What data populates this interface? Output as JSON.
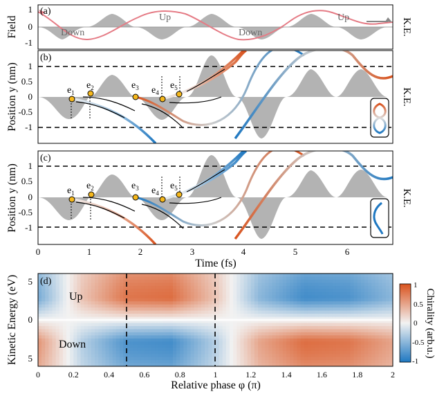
{
  "figure": {
    "panel_a": {
      "tag": "(a)",
      "ylabel": "Field",
      "right_label": "K.E.",
      "yticks": [
        "1",
        "0",
        "-1"
      ],
      "annotations": [
        "Down",
        "Up",
        "Down",
        "Up"
      ]
    },
    "panel_b": {
      "tag": "(b)",
      "ylabel": "Position y (nm)",
      "right_label": "K.E.",
      "yticks": [
        "1",
        "0.5",
        "0",
        "-0.5",
        "-1"
      ],
      "electrons": [
        "e",
        "e",
        "e",
        "e",
        "e"
      ],
      "subscripts": [
        "1",
        "2",
        "3",
        "4",
        "5"
      ]
    },
    "panel_c": {
      "tag": "(c)",
      "ylabel": "Position y (nm)",
      "right_label": "K.E.",
      "yticks": [
        "1",
        "0.5",
        "0",
        "-0.5",
        "-1"
      ],
      "electrons": [
        "e",
        "e",
        "e",
        "e",
        "e"
      ],
      "subscripts": [
        "1",
        "2",
        "3",
        "4",
        "5"
      ],
      "xticks": [
        "0",
        "1",
        "2",
        "3",
        "4",
        "5",
        "6"
      ],
      "xlabel": "Time (fs)"
    },
    "panel_d": {
      "tag": "(d)",
      "ylabel": "Kinetic Energy (eV)",
      "yticks": [
        "5",
        "0",
        "5"
      ],
      "region_labels": [
        "Up",
        "Down"
      ],
      "xticks": [
        "0",
        "0.2",
        "0.4",
        "0.6",
        "0.8",
        "1",
        "1.2",
        "1.4",
        "1.6",
        "1.8",
        "2"
      ],
      "xlabel": "Relative phase φ (π)",
      "colorbar_label": "Chirality (arb.u.)",
      "colorbar_ticks": [
        "1",
        "0.5",
        "0",
        "-0.5",
        "-1"
      ]
    }
  },
  "chart_data": [
    {
      "type": "line",
      "panel": "(a)",
      "ylabel": "Field",
      "ylim": [
        -1,
        1
      ],
      "xlim": [
        0,
        6.8
      ],
      "series": [
        {
          "color": "#e57b85",
          "x": [
            0,
            0.5,
            1.0,
            1.5,
            2.0,
            2.5,
            3.0,
            3.5,
            4.0,
            4.5,
            5.0,
            5.5,
            6.0,
            6.5,
            6.8
          ],
          "values": [
            0.71,
            -0.2,
            -0.92,
            -0.92,
            -0.2,
            0.71,
            0.99,
            0.38,
            -0.71,
            -0.98,
            -0.5,
            0.4,
            0.98,
            0.86,
            0.4
          ]
        },
        {
          "color": "#b3b3b3",
          "x": [
            0,
            0.7,
            1.35,
            2.05,
            2.7,
            3.35,
            4.05,
            4.7,
            5.4,
            6.05,
            6.8
          ],
          "values": [
            0,
            -0.75,
            0,
            0.75,
            0,
            -0.75,
            0,
            0.75,
            0,
            -0.75,
            0
          ]
        }
      ]
    },
    {
      "type": "line",
      "panel": "(b)",
      "ylabel": "Position y (nm)",
      "ylim": [
        -1.4,
        1.4
      ],
      "xlim": [
        0,
        6.8
      ],
      "points": [
        {
          "x": 0.67,
          "y": -0.05
        },
        {
          "x": 1.02,
          "y": 0.08
        },
        {
          "x": 1.9,
          "y": -0.02
        },
        {
          "x": 2.4,
          "y": -0.1
        },
        {
          "x": 2.75,
          "y": 0.05
        }
      ]
    },
    {
      "type": "line",
      "panel": "(c)",
      "ylabel": "Position y (nm)",
      "xlabel": "Time (fs)",
      "ylim": [
        -1.4,
        1.4
      ],
      "xlim": [
        0,
        6.8
      ],
      "points": [
        {
          "x": 0.67,
          "y": -0.1
        },
        {
          "x": 1.02,
          "y": 0.05
        },
        {
          "x": 1.9,
          "y": -0.02
        },
        {
          "x": 2.4,
          "y": -0.1
        },
        {
          "x": 2.75,
          "y": 0.05
        }
      ]
    },
    {
      "type": "heatmap",
      "panel": "(d)",
      "xlabel": "Relative phase φ (π)",
      "ylabel": "Kinetic Energy (eV)",
      "xlim": [
        0,
        2
      ],
      "ylim": [
        -6,
        6
      ],
      "colorbar": {
        "label": "Chirality (arb.u.)",
        "range": [
          -1,
          1
        ],
        "low_color": "#1f78c1",
        "mid_color": "#f2f2f2",
        "high_color": "#d9531e"
      },
      "dashed_lines_x": [
        0.5,
        1.0
      ],
      "x": [
        0,
        0.25,
        0.5,
        0.75,
        1.0,
        1.25,
        1.5,
        1.75,
        2.0
      ],
      "up_values": [
        -0.6,
        0.3,
        0.8,
        0.85,
        0.3,
        -0.5,
        -0.85,
        -0.8,
        -0.5
      ],
      "down_values": [
        0.6,
        -0.3,
        -0.8,
        -0.85,
        -0.3,
        0.5,
        0.85,
        0.8,
        0.5
      ]
    }
  ]
}
